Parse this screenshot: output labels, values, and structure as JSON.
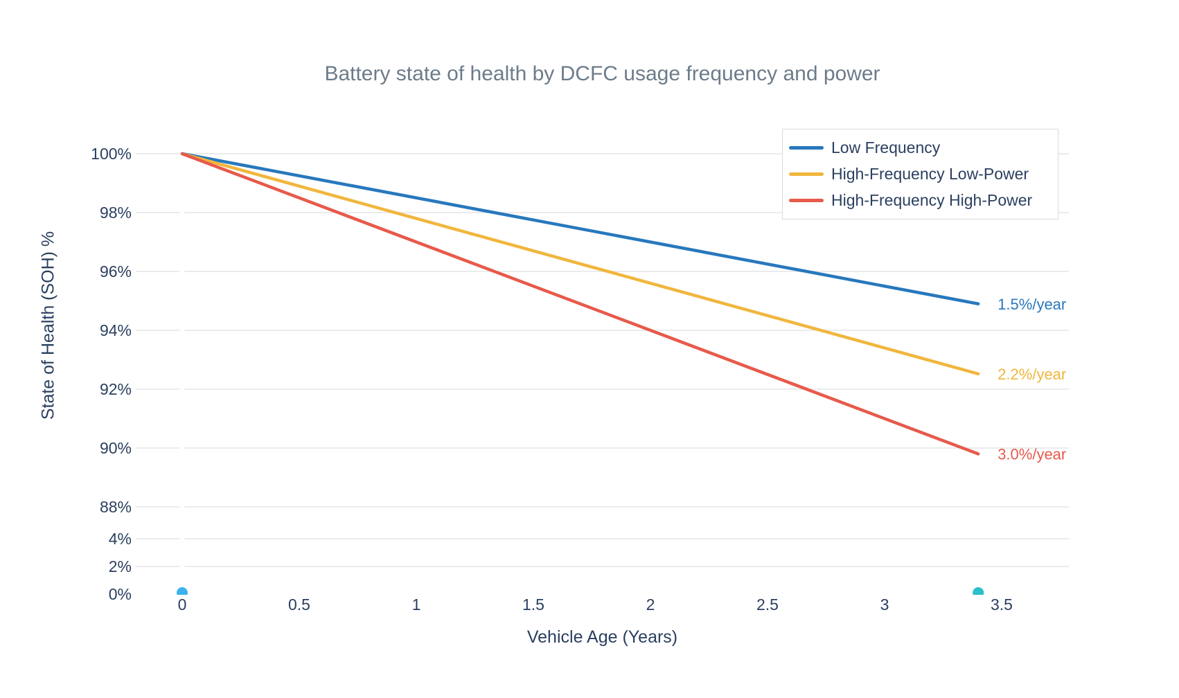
{
  "chart_data": {
    "type": "line",
    "title": "Battery state of health by DCFC usage frequency and power",
    "xlabel": "Vehicle Age (Years)",
    "ylabel": "State of Health (SOH) %",
    "grid": true,
    "legend_position": "top-right",
    "xlim": [
      -0.2,
      3.8
    ],
    "y_axis_broken": true,
    "main_panel_ylim": [
      87.5,
      100.9
    ],
    "bottom_panel_ylim": [
      0,
      5.2
    ],
    "x_ticks": [
      {
        "label": "0",
        "value": 0
      },
      {
        "label": "0.5",
        "value": 0.5
      },
      {
        "label": "1",
        "value": 1
      },
      {
        "label": "1.5",
        "value": 1.5
      },
      {
        "label": "2",
        "value": 2
      },
      {
        "label": "2.5",
        "value": 2.5
      },
      {
        "label": "3",
        "value": 3
      },
      {
        "label": "3.5",
        "value": 3.5
      }
    ],
    "y_ticks": [
      {
        "label": "100%",
        "value": 100,
        "panel": "main"
      },
      {
        "label": "98%",
        "value": 98,
        "panel": "main"
      },
      {
        "label": "96%",
        "value": 96,
        "panel": "main"
      },
      {
        "label": "94%",
        "value": 94,
        "panel": "main"
      },
      {
        "label": "92%",
        "value": 92,
        "panel": "main"
      },
      {
        "label": "90%",
        "value": 90,
        "panel": "main"
      },
      {
        "label": "88%",
        "value": 88,
        "panel": "main"
      },
      {
        "label": "4%",
        "value": 4,
        "panel": "bottom"
      },
      {
        "label": "2%",
        "value": 2,
        "panel": "bottom"
      },
      {
        "label": "0%",
        "value": 0,
        "panel": "bottom"
      }
    ],
    "series": [
      {
        "name": "Low Frequency",
        "color": "#2878BD",
        "rate_pct_per_year": 1.5,
        "annotation": "1.5%/year",
        "x": [
          0,
          3.4
        ],
        "y": [
          100,
          94.9
        ]
      },
      {
        "name": "High-Frequency Low-Power",
        "color": "#F0B63D",
        "rate_pct_per_year": 2.2,
        "annotation": "2.2%/year",
        "x": [
          0,
          3.4
        ],
        "y": [
          100,
          92.52
        ]
      },
      {
        "name": "High-Frequency High-Power",
        "color": "#E75A4B",
        "rate_pct_per_year": 3.0,
        "annotation": "3.0%/year",
        "x": [
          0,
          3.4
        ],
        "y": [
          100,
          89.8
        ]
      }
    ],
    "zero_markers": [
      {
        "x": 0,
        "y": 0,
        "color": "#39B2ED"
      },
      {
        "x": 3.4,
        "y": 0,
        "color": "#29BFCB"
      }
    ]
  },
  "colors": {
    "tick_text": "#2A3F5F",
    "title_text": "#6D7B8A",
    "gridline": "#E7E8EA",
    "zeroline": "#FFFFFF",
    "legend_border": "#D9DADC",
    "background": "#FFFFFF"
  }
}
